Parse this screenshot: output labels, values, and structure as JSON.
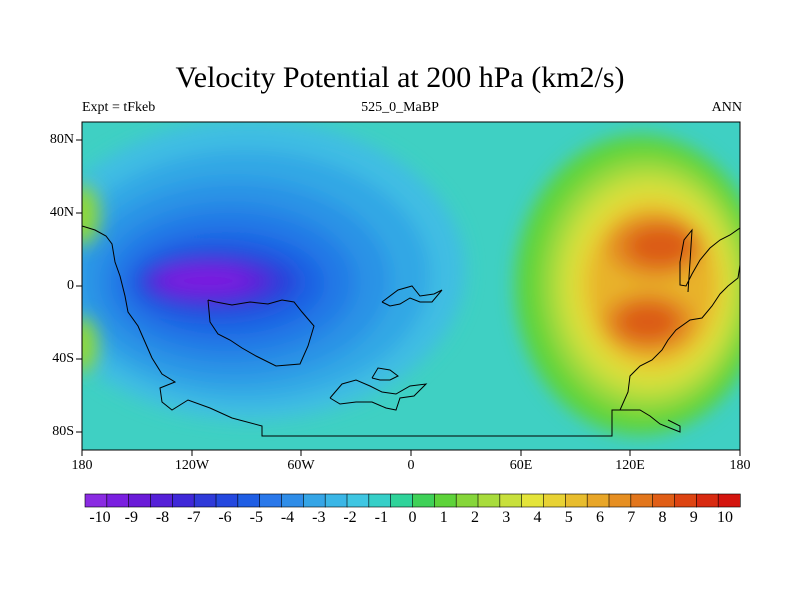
{
  "title": "Velocity Potential at 200 hPa (km2/s)",
  "subtitle_left": "Expt = tFkeb",
  "subtitle_center": "525_0_MaBP",
  "subtitle_right": "ANN",
  "lat_labels": [
    "80N",
    "40N",
    "0",
    "40S",
    "80S"
  ],
  "lon_labels": [
    "180",
    "120W",
    "60W",
    "0",
    "60E",
    "120E",
    "180"
  ],
  "colorbar_labels": [
    "-10",
    "-9",
    "-8",
    "-7",
    "-6",
    "-5",
    "-4",
    "-3",
    "-2",
    "-1",
    "0",
    "1",
    "2",
    "3",
    "4",
    "5",
    "6",
    "7",
    "8",
    "9",
    "10"
  ],
  "colorbar_colors": [
    "#8a2be2",
    "#7a1fe0",
    "#6a1bd8",
    "#5520d8",
    "#3f28d8",
    "#2f3ad9",
    "#2448df",
    "#1f5ee4",
    "#2a78ea",
    "#2f8de8",
    "#35a5e6",
    "#3ab6e6",
    "#3fc6e2",
    "#36cfc8",
    "#2fd39a",
    "#3fd158",
    "#5ed33a",
    "#86d63a",
    "#a8dc3c",
    "#c8e03c",
    "#e4e43a",
    "#e8d234",
    "#e8bd2e",
    "#e8a628",
    "#e68f22",
    "#e2761c",
    "#e05e16",
    "#dd4412",
    "#d82a10",
    "#d4140e"
  ],
  "background_color": "#3fd0c3",
  "chart_data": {
    "type": "heatmap",
    "title": "Velocity Potential at 200 hPa (km2/s)",
    "xlabel": "",
    "ylabel": "",
    "x_range": [
      -180,
      180
    ],
    "y_range": [
      -90,
      90
    ],
    "color_range": [
      -10,
      10
    ],
    "features": [
      {
        "lon": -110,
        "lat": 5,
        "value": -9.5,
        "kind": "minimum"
      },
      {
        "lon": 130,
        "lat": 20,
        "value": 8,
        "kind": "maximum"
      },
      {
        "lon": 125,
        "lat": -20,
        "value": 8,
        "kind": "maximum"
      }
    ]
  }
}
